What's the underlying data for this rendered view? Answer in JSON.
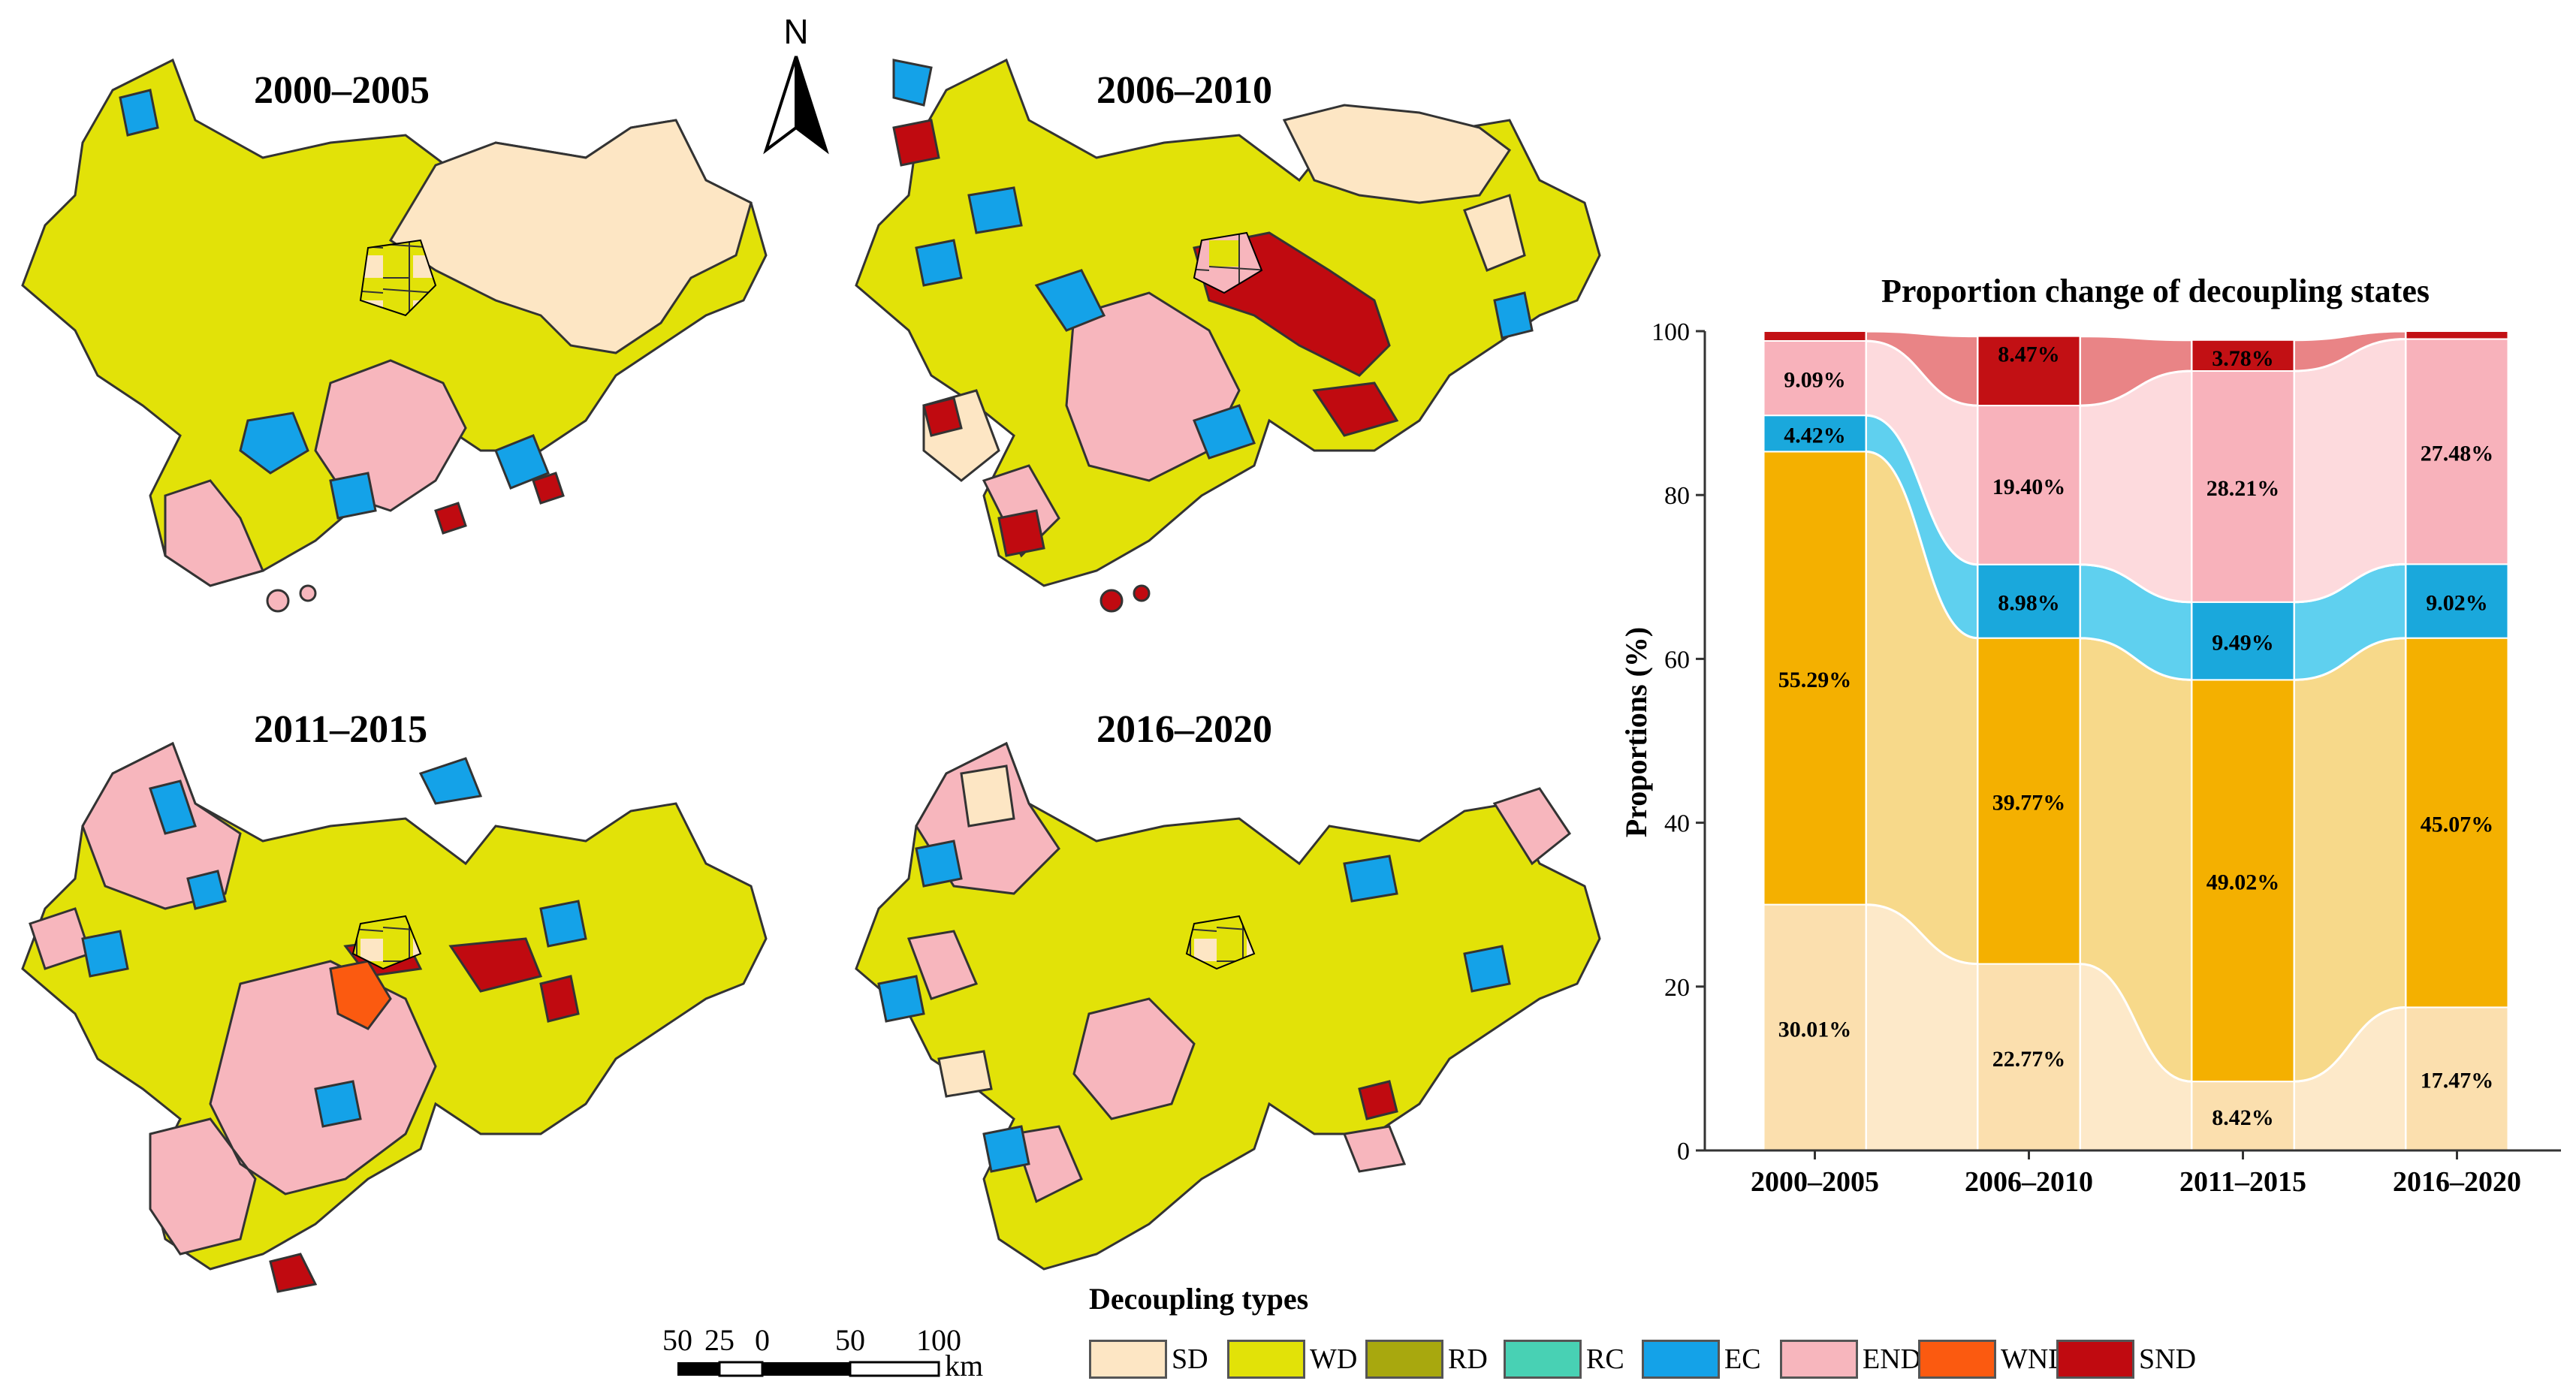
{
  "maps": [
    {
      "period": "2000–2005"
    },
    {
      "period": "2006–2010"
    },
    {
      "period": "2011–2015"
    },
    {
      "period": "2016–2020"
    }
  ],
  "north_arrow": {
    "label": "N"
  },
  "scale_bar": {
    "labels": [
      "50",
      "25",
      "0",
      "50",
      "100"
    ],
    "unit": "km"
  },
  "legend": {
    "title": "Decoupling types",
    "items": [
      {
        "code": "SD",
        "color": "#fde6c4"
      },
      {
        "code": "WD",
        "color": "#e2e208"
      },
      {
        "code": "RD",
        "color": "#a8a80e"
      },
      {
        "code": "RC",
        "color": "#48d1b4"
      },
      {
        "code": "EC",
        "color": "#14a2e8"
      },
      {
        "code": "END",
        "color": "#f7b6bd"
      },
      {
        "code": "WND",
        "color": "#fb5a10"
      },
      {
        "code": "SND",
        "color": "#c00a10"
      }
    ]
  },
  "chart_data": {
    "type": "bar",
    "subtype": "stacked-100-alluvial",
    "title": "Proportion change of decoupling states",
    "xlabel": "",
    "ylabel": "Proportions (%)",
    "ylim": [
      0,
      100
    ],
    "yticks": [
      "0",
      "20",
      "40",
      "60",
      "80",
      "100"
    ],
    "categories": [
      "2000–2005",
      "2006–2010",
      "2011–2015",
      "2016–2020"
    ],
    "series": [
      {
        "name": "SD",
        "color": "#fbdfae",
        "flow_color": "#fde9c9",
        "values": [
          30.01,
          22.77,
          8.42,
          17.47
        ],
        "labels": [
          "30.01%",
          "22.77%",
          "8.42%",
          "17.47%"
        ]
      },
      {
        "name": "WD",
        "color": "#f4b000",
        "flow_color": "#f7d98a",
        "values": [
          55.29,
          39.77,
          49.02,
          45.07
        ],
        "labels": [
          "55.29%",
          "39.77%",
          "49.02%",
          "45.07%"
        ]
      },
      {
        "name": "EC",
        "color": "#1aa8dc",
        "flow_color": "#5fd0ef",
        "values": [
          4.42,
          8.98,
          9.49,
          9.02
        ],
        "labels": [
          "4.42%",
          "8.98%",
          "9.49%",
          "9.02%"
        ]
      },
      {
        "name": "END",
        "color": "#f8b2bb",
        "flow_color": "#fddadd",
        "values": [
          9.09,
          19.4,
          28.21,
          27.48
        ],
        "labels": [
          "9.09%",
          "19.40%",
          "28.21%",
          "27.48%"
        ]
      },
      {
        "name": "SND",
        "color": "#c21014",
        "flow_color": "#e98486",
        "values": [
          1.19,
          8.47,
          3.78,
          0.96
        ],
        "labels": [
          "",
          "8.47%",
          "3.78%",
          ""
        ]
      }
    ]
  }
}
